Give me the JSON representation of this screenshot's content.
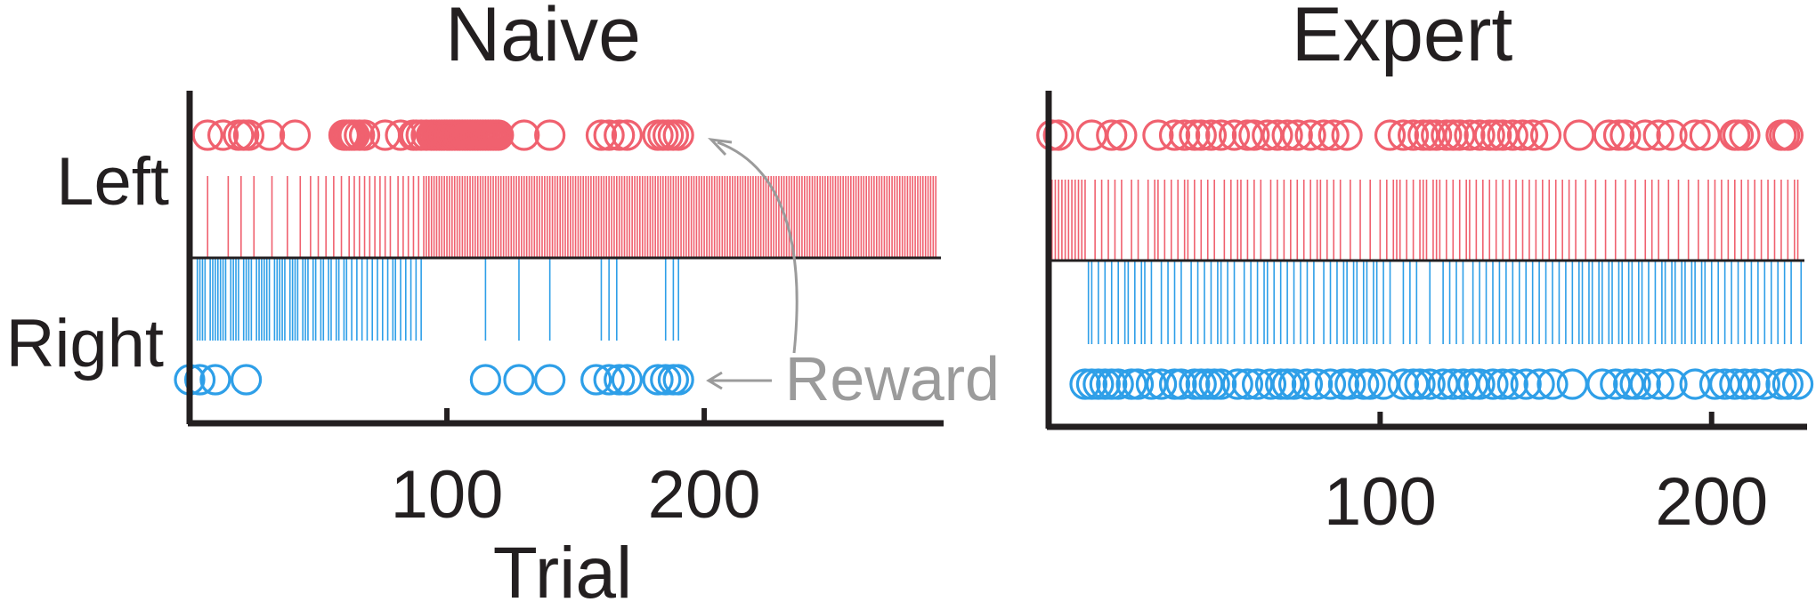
{
  "colors": {
    "left": "#f0616f",
    "right": "#2e9fe8",
    "axis": "#231f20",
    "annotation": "#9b9b9b"
  },
  "y_tick_labels": {
    "left": "Left",
    "right": "Right"
  },
  "xlabel": "Trial",
  "annotation": {
    "text": "Reward"
  },
  "chart_data": [
    {
      "type": "scatter",
      "title": "Naive",
      "xlabel": "Trial",
      "xlim": [
        0,
        292
      ],
      "xticks": [
        100,
        200
      ],
      "yticks": [
        "Left",
        "Right"
      ],
      "left_choice_trials": [
        7,
        15,
        20,
        25,
        32,
        38,
        43,
        47,
        50,
        53,
        56,
        59,
        62,
        64,
        66,
        68,
        70,
        72,
        74,
        76,
        78,
        81,
        83,
        85,
        87,
        89,
        91,
        92,
        93,
        94,
        95,
        96,
        97,
        98,
        99,
        100,
        101,
        102,
        103,
        104,
        105,
        106,
        107,
        108,
        109,
        110,
        111,
        112,
        113,
        114,
        115,
        116,
        117,
        118,
        119,
        120,
        121,
        122,
        123,
        124,
        125,
        126,
        127,
        128,
        129,
        130,
        131,
        132,
        133,
        134,
        135,
        136,
        137,
        138,
        139,
        140,
        141,
        142,
        143,
        144,
        145,
        146,
        147,
        148,
        149,
        150,
        151,
        152,
        153,
        154,
        155,
        156,
        157,
        158,
        159,
        160,
        161,
        162,
        163,
        164,
        165,
        166,
        167,
        168,
        169,
        170,
        171,
        172,
        173,
        174,
        175,
        176,
        177,
        178,
        179,
        180,
        181,
        182,
        183,
        184,
        185,
        186,
        187,
        188,
        189,
        190,
        191,
        192,
        193,
        194,
        195,
        196,
        197,
        198,
        199,
        200,
        201,
        202,
        203,
        204,
        205,
        206,
        207,
        208,
        209,
        210,
        211,
        212,
        213,
        214,
        215,
        216,
        217,
        218,
        219,
        220,
        221,
        222,
        223,
        224,
        225,
        226,
        227,
        228,
        229,
        230,
        231,
        232,
        233,
        234,
        235,
        236,
        237,
        238,
        239,
        240,
        241,
        242,
        243,
        244,
        245,
        246,
        247,
        248,
        249,
        250,
        251,
        252,
        253,
        254,
        255,
        256,
        257,
        258,
        259,
        260,
        261,
        262,
        263,
        264,
        265,
        266,
        267,
        268,
        269,
        270,
        271,
        272,
        273,
        274,
        275,
        276,
        277,
        278,
        279,
        280,
        281,
        282,
        283,
        284,
        285,
        286,
        287,
        288,
        289,
        290
      ],
      "right_choice_trials": [
        3,
        4,
        5,
        6,
        8,
        9,
        10,
        11,
        12,
        13,
        14,
        16,
        17,
        18,
        19,
        21,
        22,
        23,
        24,
        26,
        27,
        28,
        29,
        30,
        31,
        33,
        34,
        35,
        36,
        37,
        39,
        40,
        41,
        42,
        44,
        45,
        46,
        48,
        49,
        51,
        52,
        54,
        55,
        57,
        58,
        60,
        61,
        63,
        65,
        67,
        69,
        71,
        73,
        75,
        77,
        79,
        80,
        82,
        84,
        86,
        88,
        90,
        115,
        128,
        140,
        160,
        163,
        166,
        185,
        188,
        190
      ],
      "left_reward_trials": [
        7,
        13,
        19,
        21,
        23,
        31,
        41,
        60,
        61,
        62,
        63,
        64,
        66,
        68,
        76,
        82,
        87,
        88,
        90,
        92,
        94,
        95,
        96,
        97,
        98,
        99,
        100,
        101,
        102,
        103,
        104,
        105,
        106,
        107,
        108,
        109,
        110,
        111,
        112,
        113,
        114,
        115,
        116,
        117,
        118,
        119,
        120,
        130,
        140,
        160,
        163,
        167,
        170,
        182,
        184,
        186,
        188,
        190
      ],
      "right_reward_trials": [
        0,
        4,
        10,
        22,
        115,
        128,
        140,
        158,
        163,
        167,
        170,
        182,
        185,
        188,
        190
      ]
    },
    {
      "type": "scatter",
      "title": "Expert",
      "xlim": [
        0,
        228
      ],
      "xticks": [
        100,
        200
      ],
      "yticks": [
        "Left",
        "Right"
      ],
      "left_choice_trials": [
        1,
        2,
        3,
        4,
        5,
        6,
        7,
        8,
        9,
        10,
        11,
        14,
        16,
        18,
        20,
        22,
        25,
        27,
        30,
        32,
        33,
        35,
        37,
        39,
        41,
        42,
        44,
        46,
        48,
        50,
        53,
        55,
        57,
        58,
        60,
        62,
        64,
        67,
        69,
        71,
        73,
        75,
        77,
        79,
        81,
        82,
        84,
        86,
        88,
        91,
        94,
        97,
        100,
        102,
        104,
        105,
        106,
        108,
        110,
        112,
        113,
        114,
        116,
        117,
        118,
        120,
        122,
        124,
        126,
        127,
        129,
        131,
        133,
        135,
        137,
        139,
        141,
        143,
        145,
        147,
        149,
        151,
        153,
        155,
        157,
        159,
        162,
        165,
        168,
        171,
        174,
        177,
        180,
        182,
        184,
        187,
        190,
        193,
        196,
        199,
        201,
        203,
        205,
        207,
        209,
        211,
        213,
        215,
        217,
        219,
        221,
        223,
        225,
        226
      ],
      "right_choice_trials": [
        12,
        13,
        15,
        17,
        19,
        21,
        23,
        24,
        26,
        28,
        29,
        31,
        34,
        36,
        38,
        40,
        43,
        45,
        47,
        49,
        51,
        52,
        54,
        56,
        59,
        61,
        63,
        65,
        66,
        68,
        70,
        72,
        74,
        76,
        78,
        80,
        83,
        85,
        87,
        89,
        90,
        92,
        93,
        95,
        96,
        98,
        99,
        101,
        103,
        107,
        109,
        111,
        115,
        119,
        121,
        123,
        125,
        128,
        130,
        132,
        134,
        136,
        138,
        140,
        142,
        144,
        146,
        148,
        150,
        152,
        154,
        156,
        158,
        160,
        161,
        163,
        164,
        166,
        167,
        169,
        170,
        172,
        173,
        175,
        176,
        178,
        179,
        181,
        183,
        185,
        186,
        188,
        189,
        191,
        192,
        194,
        195,
        197,
        198,
        200,
        202,
        204,
        206,
        208,
        210,
        212,
        214,
        216,
        218,
        220,
        222,
        224,
        227
      ],
      "left_reward_trials": [
        1,
        3,
        13,
        19,
        22,
        33,
        38,
        41,
        44,
        46,
        49,
        52,
        56,
        60,
        62,
        66,
        69,
        72,
        75,
        79,
        83,
        86,
        90,
        103,
        107,
        110,
        113,
        115,
        117,
        120,
        122,
        124,
        127,
        130,
        133,
        135,
        137,
        140,
        143,
        146,
        150,
        160,
        169,
        172,
        174,
        180,
        184,
        188,
        195,
        198,
        207,
        208,
        210,
        221,
        222,
        223
      ],
      "right_reward_trials": [
        11,
        13,
        15,
        17,
        19,
        21,
        25,
        27,
        31,
        34,
        38,
        40,
        44,
        46,
        48,
        50,
        52,
        57,
        60,
        63,
        67,
        70,
        72,
        74,
        78,
        81,
        85,
        89,
        91,
        95,
        97,
        101,
        107,
        110,
        112,
        115,
        119,
        122,
        125,
        128,
        130,
        134,
        137,
        140,
        144,
        148,
        152,
        158,
        167,
        171,
        175,
        177,
        180,
        184,
        188,
        195,
        201,
        204,
        207,
        210,
        213,
        216,
        221,
        223,
        226
      ]
    }
  ]
}
